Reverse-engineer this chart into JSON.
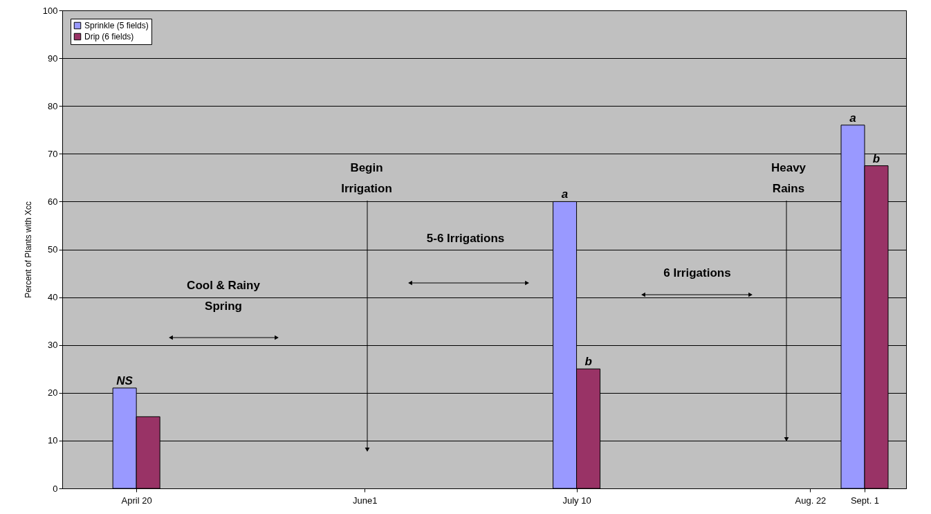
{
  "chart_data": {
    "type": "bar",
    "ylabel": "Percent of Plants with Xcc",
    "x": [
      "--04-20",
      "--06-01",
      "--07-10",
      "--08-22",
      "--09-01"
    ],
    "xlim": [
      "--04-07",
      "--09-08"
    ],
    "xticks": [
      {
        "value": "--04-20",
        "label": "April 20"
      },
      {
        "value": "--06-01",
        "label": "June1"
      },
      {
        "value": "--07-10",
        "label": "July 10"
      },
      {
        "value": "--08-22",
        "label": "Aug. 22"
      },
      {
        "value": "--09-01",
        "label": "Sept. 1"
      }
    ],
    "ylim": [
      0,
      100
    ],
    "yticks": [
      0,
      10,
      20,
      30,
      40,
      50,
      60,
      70,
      80,
      90,
      100
    ],
    "series": [
      {
        "name": "Sprinkle (5 fields)",
        "color": "#9999ff",
        "values": [
          21,
          null,
          60,
          null,
          76
        ]
      },
      {
        "name": "Drip (6 fields)",
        "color": "#993366",
        "values": [
          15,
          null,
          25,
          null,
          67.5
        ]
      }
    ],
    "annotations": [
      {
        "text": "NS",
        "x": "--04-20",
        "y": 21
      },
      {
        "text": "a",
        "x": "--07-10",
        "y": 60
      },
      {
        "text": "b",
        "x": "--07-10",
        "y": 25
      },
      {
        "text": "a",
        "x": "--09-01",
        "y": 76
      },
      {
        "text": "b",
        "x": "--09-01",
        "y": 67.5
      },
      "Cool & Rainy\nSpring",
      "Begin\nIrrigation",
      "5-6 Irrigations",
      "6  Irrigations",
      "Heavy\nRains"
    ],
    "grid": "y",
    "legend": "top left"
  }
}
